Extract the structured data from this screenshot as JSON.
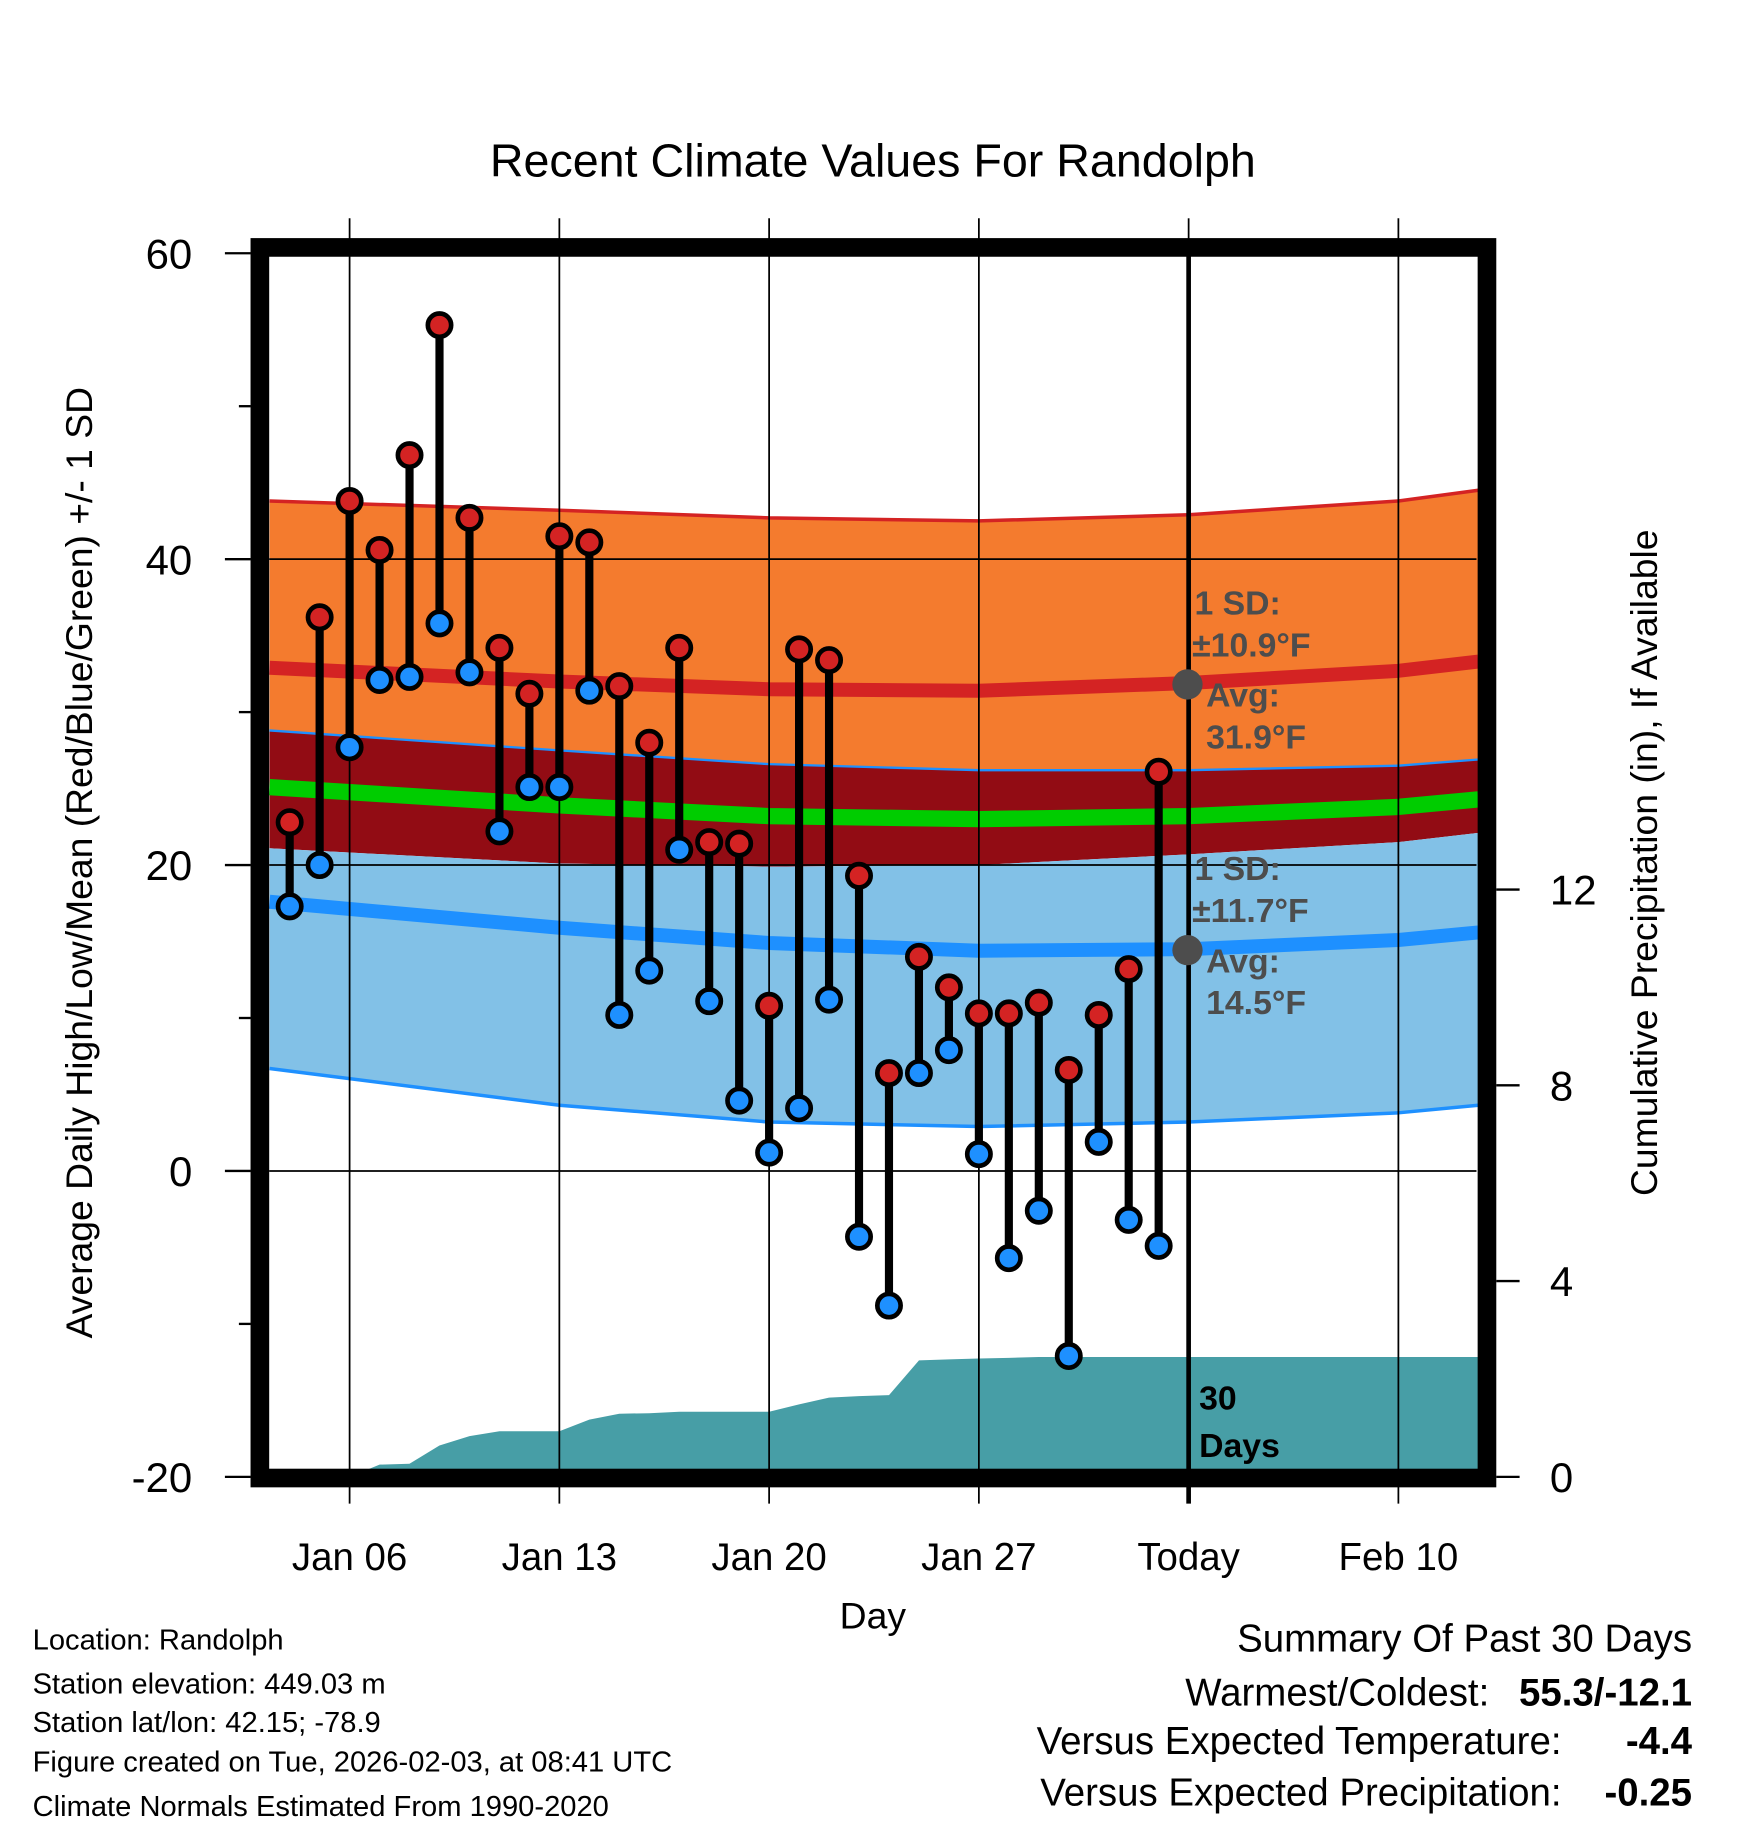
{
  "chart_data": {
    "type": "line",
    "title": "Recent Climate Values For Randolph",
    "xlabel": "Day",
    "ylabel": "Average Daily High/Low/Mean (Red/Blue/Green) +/- 1 SD",
    "y2label": "Cumulative Precipitation (in), If Available",
    "ylim": [
      -20,
      60
    ],
    "y2lim": [
      0,
      19
    ],
    "yticks": [
      "60",
      "40",
      "20",
      "0",
      "-20"
    ],
    "yticks_values": [
      60,
      40,
      20,
      0,
      -20
    ],
    "y2ticks": [
      "12",
      "8",
      "4",
      "0"
    ],
    "y2ticks_values": [
      12,
      8,
      4,
      0
    ],
    "xticks": [
      {
        "label": "Jan 06",
        "day": 6
      },
      {
        "label": "Jan 13",
        "day": 13
      },
      {
        "label": "Jan 20",
        "day": 20
      },
      {
        "label": "Jan 27",
        "day": 27
      },
      {
        "label": "Today",
        "day": 34
      },
      {
        "label": "Feb 10",
        "day": 41
      }
    ],
    "today_day": 34,
    "grid": true,
    "observed": {
      "days": [
        4,
        5,
        6,
        7,
        8,
        9,
        10,
        11,
        12,
        13,
        14,
        15,
        16,
        17,
        18,
        19,
        20,
        21,
        22,
        23,
        24,
        25,
        26,
        27,
        28,
        29,
        30,
        31,
        32,
        33
      ],
      "highs": [
        22.8,
        36.2,
        43.8,
        40.6,
        46.8,
        55.3,
        42.7,
        34.2,
        31.2,
        41.5,
        41.1,
        31.7,
        28.0,
        34.2,
        21.5,
        21.4,
        10.8,
        34.1,
        33.4,
        19.3,
        6.4,
        14.0,
        12.0,
        10.3,
        10.3,
        11.0,
        6.6,
        10.2,
        13.2,
        26.1
      ],
      "lows": [
        17.3,
        20.0,
        27.7,
        32.1,
        32.3,
        35.8,
        32.6,
        22.2,
        25.1,
        25.1,
        31.4,
        10.2,
        13.1,
        21.0,
        11.1,
        4.6,
        1.2,
        4.1,
        11.2,
        -4.3,
        -8.8,
        6.4,
        7.9,
        1.1,
        -5.7,
        -2.6,
        -12.1,
        1.9,
        -3.2,
        -4.9
      ]
    },
    "normals": {
      "days": [
        3.33,
        13,
        20,
        27,
        34,
        41,
        43.67
      ],
      "high_plus_sd": [
        43.8,
        43.2,
        42.7,
        42.5,
        42.9,
        43.8,
        44.5
      ],
      "high_avg": [
        32.9,
        32.0,
        31.5,
        31.4,
        31.9,
        32.7,
        33.3
      ],
      "high_minus_sd": [
        28.8,
        27.5,
        26.6,
        26.2,
        26.2,
        26.5,
        26.9
      ],
      "mean_avg": [
        25.1,
        23.9,
        23.2,
        23.0,
        23.2,
        23.8,
        24.3
      ],
      "low_plus_sd": [
        21.1,
        20.1,
        19.9,
        20.0,
        20.7,
        21.5,
        22.1
      ],
      "low_avg": [
        17.6,
        15.9,
        14.9,
        14.4,
        14.5,
        15.1,
        15.6
      ],
      "low_minus_sd": [
        6.7,
        4.3,
        3.2,
        2.9,
        3.2,
        3.8,
        4.3
      ]
    },
    "precip_cumulative": {
      "days": [
        6,
        7,
        8,
        9,
        10,
        11,
        12,
        13,
        14,
        15,
        16,
        17,
        18,
        19,
        20,
        21,
        22,
        23,
        24,
        25,
        26,
        27,
        28,
        29,
        30,
        31,
        32,
        33,
        34,
        43.67
      ],
      "values": [
        0,
        0.25,
        0.27,
        0.64,
        0.83,
        0.93,
        0.93,
        0.93,
        1.17,
        1.29,
        1.3,
        1.33,
        1.33,
        1.33,
        1.33,
        1.48,
        1.62,
        1.65,
        1.67,
        2.38,
        2.4,
        2.42,
        2.43,
        2.45,
        2.45,
        2.45,
        2.45,
        2.45,
        2.45,
        2.45
      ]
    },
    "annotations": {
      "high_sd_label": "1 SD:",
      "high_sd_value": "±10.9°F",
      "high_avg_label": "Avg:",
      "high_avg_value": "31.9°F",
      "low_sd_label": "1 SD:",
      "low_sd_value": "±11.7°F",
      "low_avg_label": "Avg:",
      "low_avg_value": "14.5°F",
      "days_count": "30",
      "days_word": "Days"
    },
    "colors": {
      "high_band": "#f47b2e",
      "mid_band": "#920c14",
      "low_band": "#82c1e7",
      "high_line": "#d42323",
      "mean_line": "#00cc00",
      "low_line": "#1e90ff",
      "precip": "#479ea6",
      "high_dot": "#d42323",
      "low_dot": "#1e90ff"
    }
  },
  "footer": {
    "location": "Location: Randolph",
    "elevation": "Station elevation: 449.03 m",
    "latlon": "Station lat/lon: 42.15; -78.9",
    "created": "Figure created on Tue, 2026-02-03, at 08:41 UTC",
    "normals": "Climate Normals Estimated From 1990-2020"
  },
  "summary": {
    "title": "Summary Of Past 30 Days",
    "warmest_label": "Warmest/Coldest:",
    "warmest_value": "55.3/-12.1",
    "temp_label": "Versus Expected Temperature:",
    "temp_value": "-4.4",
    "temp_color": "#1e90ff",
    "precip_label": "Versus Expected Precipitation:",
    "precip_value": "-0.25",
    "precip_color": "#a0522d"
  }
}
